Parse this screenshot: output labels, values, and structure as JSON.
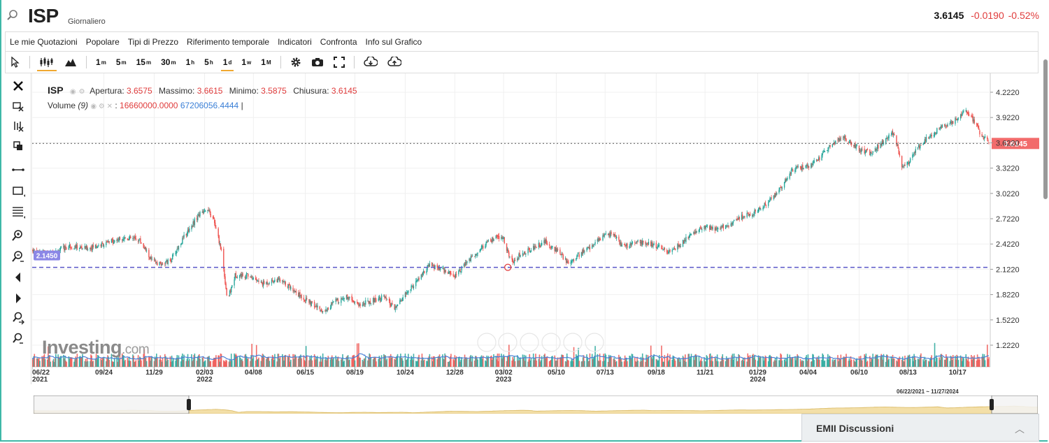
{
  "header": {
    "symbol": "ISP",
    "period": "Giornaliero",
    "last": "3.6145",
    "change": "-0.0190",
    "change_pct": "-0.52%"
  },
  "menu": [
    "Le mie Quotazioni",
    "Popolare",
    "Tipi di Prezzo",
    "Riferimento temporale",
    "Indicatori",
    "Confronta",
    "Info sul Grafico"
  ],
  "timeframes": [
    {
      "n": "1",
      "u": "m"
    },
    {
      "n": "5",
      "u": "m"
    },
    {
      "n": "15",
      "u": "m"
    },
    {
      "n": "30",
      "u": "m"
    },
    {
      "n": "1",
      "u": "h"
    },
    {
      "n": "5",
      "u": "h"
    },
    {
      "n": "1",
      "u": "d"
    },
    {
      "n": "1",
      "u": "w"
    },
    {
      "n": "1",
      "u": "M"
    }
  ],
  "legend": {
    "symbol": "ISP",
    "open_label": "Apertura:",
    "open": "3.6575",
    "high_label": "Massimo:",
    "high": "3.6615",
    "low_label": "Minimo:",
    "low": "3.5875",
    "close_label": "Chiusura:",
    "close": "3.6145",
    "vol_label": "Volume",
    "vol_period": "(9)",
    "vol_value1": "16660000.0000",
    "vol_value2": "67206056.4444",
    "cursor": "|"
  },
  "watermark": {
    "brand": "Investing",
    "domain": ".com"
  },
  "range_label": "06/22/2021 ~ 11/27/2024",
  "discussion": {
    "title": "EMII Discussioni"
  },
  "colors": {
    "up": "#26a69a",
    "down": "#ef5350",
    "volume_line": "#4a7fd6",
    "hline": "#5a56c8",
    "price_badge": "#f26b6b",
    "hline_badge": "#8b87e6",
    "nav_fill": "#f3dfa8"
  },
  "chart_data": {
    "type": "candlestick",
    "x_start": "06/22/2021",
    "x_end": "11/27/2024",
    "y_ticks": [
      1.222,
      1.522,
      1.822,
      2.122,
      2.422,
      2.722,
      3.022,
      3.322,
      3.622,
      3.922,
      4.222
    ],
    "y_tick_labels": [
      "1.2220",
      "1.5220",
      "1.8220",
      "2.1220",
      "2.4220",
      "2.7220",
      "3.0220",
      "3.3220",
      "3.6220",
      "3.9220",
      "4.2220"
    ],
    "ylim": [
      1.05,
      4.33
    ],
    "x_ticks": [
      {
        "date": "06/22/2021",
        "label": "06/22",
        "sub": "2021"
      },
      {
        "date": "09/24/2021",
        "label": "09/24",
        "sub": ""
      },
      {
        "date": "11/29/2021",
        "label": "11/29",
        "sub": ""
      },
      {
        "date": "02/03/2022",
        "label": "02/03",
        "sub": "2022"
      },
      {
        "date": "04/08/2022",
        "label": "04/08",
        "sub": ""
      },
      {
        "date": "06/15/2022",
        "label": "06/15",
        "sub": ""
      },
      {
        "date": "08/19/2022",
        "label": "08/19",
        "sub": ""
      },
      {
        "date": "10/24/2022",
        "label": "10/24",
        "sub": ""
      },
      {
        "date": "12/28/2022",
        "label": "12/28",
        "sub": ""
      },
      {
        "date": "03/02/2023",
        "label": "03/02",
        "sub": "2023"
      },
      {
        "date": "05/10/2023",
        "label": "05/10",
        "sub": ""
      },
      {
        "date": "07/13/2023",
        "label": "07/13",
        "sub": ""
      },
      {
        "date": "09/18/2023",
        "label": "09/18",
        "sub": ""
      },
      {
        "date": "11/21/2023",
        "label": "11/21",
        "sub": ""
      },
      {
        "date": "01/29/2024",
        "label": "01/29",
        "sub": "2024"
      },
      {
        "date": "04/04/2024",
        "label": "04/04",
        "sub": ""
      },
      {
        "date": "06/10/2024",
        "label": "06/10",
        "sub": ""
      },
      {
        "date": "08/13/2024",
        "label": "08/13",
        "sub": ""
      },
      {
        "date": "10/17/2024",
        "label": "10/17",
        "sub": ""
      }
    ],
    "close_path": [
      [
        "06/22/2021",
        2.35
      ],
      [
        "07/15/2021",
        2.3
      ],
      [
        "08/10/2021",
        2.4
      ],
      [
        "09/01/2021",
        2.37
      ],
      [
        "09/24/2021",
        2.42
      ],
      [
        "10/20/2021",
        2.5
      ],
      [
        "11/10/2021",
        2.47
      ],
      [
        "11/25/2021",
        2.23
      ],
      [
        "12/05/2021",
        2.18
      ],
      [
        "12/20/2021",
        2.22
      ],
      [
        "01/10/2022",
        2.55
      ],
      [
        "01/25/2022",
        2.75
      ],
      [
        "02/05/2022",
        2.85
      ],
      [
        "02/15/2022",
        2.7
      ],
      [
        "02/25/2022",
        2.35
      ],
      [
        "03/05/2022",
        1.75
      ],
      [
        "03/15/2022",
        2.05
      ],
      [
        "04/01/2022",
        2.05
      ],
      [
        "04/20/2022",
        1.95
      ],
      [
        "05/10/2022",
        2.0
      ],
      [
        "05/25/2022",
        1.92
      ],
      [
        "06/10/2022",
        1.8
      ],
      [
        "06/25/2022",
        1.7
      ],
      [
        "07/10/2022",
        1.62
      ],
      [
        "07/25/2022",
        1.75
      ],
      [
        "08/10/2022",
        1.8
      ],
      [
        "08/25/2022",
        1.7
      ],
      [
        "09/10/2022",
        1.75
      ],
      [
        "09/25/2022",
        1.8
      ],
      [
        "10/10/2022",
        1.65
      ],
      [
        "10/24/2022",
        1.82
      ],
      [
        "11/10/2022",
        2.0
      ],
      [
        "11/25/2022",
        2.17
      ],
      [
        "12/10/2022",
        2.12
      ],
      [
        "12/28/2022",
        2.05
      ],
      [
        "01/15/2023",
        2.22
      ],
      [
        "02/01/2023",
        2.38
      ],
      [
        "02/20/2023",
        2.5
      ],
      [
        "03/02/2023",
        2.48
      ],
      [
        "03/12/2023",
        2.2
      ],
      [
        "03/20/2023",
        2.27
      ],
      [
        "04/10/2023",
        2.38
      ],
      [
        "04/25/2023",
        2.45
      ],
      [
        "05/10/2023",
        2.35
      ],
      [
        "05/25/2023",
        2.2
      ],
      [
        "06/10/2023",
        2.3
      ],
      [
        "06/25/2023",
        2.4
      ],
      [
        "07/13/2023",
        2.52
      ],
      [
        "07/25/2023",
        2.55
      ],
      [
        "08/05/2023",
        2.38
      ],
      [
        "08/25/2023",
        2.45
      ],
      [
        "09/18/2023",
        2.4
      ],
      [
        "10/05/2023",
        2.32
      ],
      [
        "10/20/2023",
        2.42
      ],
      [
        "11/05/2023",
        2.55
      ],
      [
        "11/21/2023",
        2.62
      ],
      [
        "12/10/2023",
        2.6
      ],
      [
        "12/28/2023",
        2.68
      ],
      [
        "01/10/2024",
        2.75
      ],
      [
        "01/29/2024",
        2.82
      ],
      [
        "02/15/2024",
        2.95
      ],
      [
        "03/01/2024",
        3.12
      ],
      [
        "03/15/2024",
        3.3
      ],
      [
        "04/04/2024",
        3.35
      ],
      [
        "04/20/2024",
        3.45
      ],
      [
        "05/05/2024",
        3.6
      ],
      [
        "05/20/2024",
        3.7
      ],
      [
        "06/01/2024",
        3.6
      ],
      [
        "06/10/2024",
        3.55
      ],
      [
        "06/25/2024",
        3.5
      ],
      [
        "07/10/2024",
        3.62
      ],
      [
        "07/25/2024",
        3.75
      ],
      [
        "08/05/2024",
        3.35
      ],
      [
        "08/13/2024",
        3.38
      ],
      [
        "08/25/2024",
        3.55
      ],
      [
        "09/10/2024",
        3.7
      ],
      [
        "09/25/2024",
        3.8
      ],
      [
        "10/05/2024",
        3.85
      ],
      [
        "10/17/2024",
        3.9
      ],
      [
        "10/28/2024",
        4.02
      ],
      [
        "11/05/2024",
        3.92
      ],
      [
        "11/15/2024",
        3.75
      ],
      [
        "11/27/2024",
        3.6145
      ]
    ],
    "horizontal_lines": [
      {
        "value": 2.145,
        "label": "2.1450",
        "style": "dashed"
      },
      {
        "value": 3.6145,
        "label": "3.6145",
        "style": "dotted"
      }
    ],
    "volume": {
      "min": 3000000,
      "max": 35000000,
      "ma_period": 9
    },
    "grid": true
  }
}
